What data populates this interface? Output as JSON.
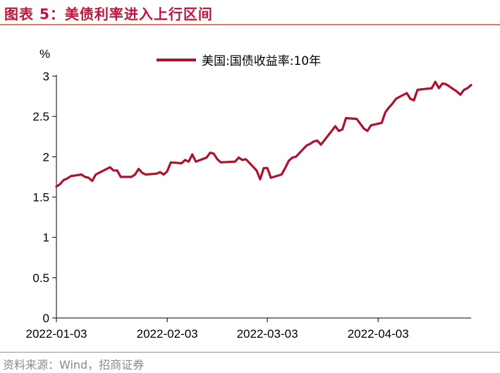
{
  "title": "图表 5：美债利率进入上行区间",
  "source": "资料来源：Wind，招商证券",
  "chart_data": {
    "type": "line",
    "unit_label": "%",
    "ylim": [
      0,
      3
    ],
    "y_ticks": [
      "3",
      "2.5",
      "2",
      "1.5",
      "1",
      "0.5",
      "0"
    ],
    "x_ticks": [
      "2022-01-03",
      "2022-02-03",
      "2022-03-03",
      "2022-04-03"
    ],
    "legend_position": "top-center",
    "grid": false,
    "series": [
      {
        "name": "美国:国债收益率:10年",
        "color": "#b0102e",
        "points": [
          [
            "2022-01-03",
            1.63
          ],
          [
            "2022-01-04",
            1.66
          ],
          [
            "2022-01-05",
            1.71
          ],
          [
            "2022-01-06",
            1.73
          ],
          [
            "2022-01-07",
            1.76
          ],
          [
            "2022-01-10",
            1.78
          ],
          [
            "2022-01-11",
            1.75
          ],
          [
            "2022-01-12",
            1.74
          ],
          [
            "2022-01-13",
            1.7
          ],
          [
            "2022-01-14",
            1.78
          ],
          [
            "2022-01-18",
            1.87
          ],
          [
            "2022-01-19",
            1.83
          ],
          [
            "2022-01-20",
            1.83
          ],
          [
            "2022-01-21",
            1.75
          ],
          [
            "2022-01-24",
            1.75
          ],
          [
            "2022-01-25",
            1.78
          ],
          [
            "2022-01-26",
            1.85
          ],
          [
            "2022-01-27",
            1.8
          ],
          [
            "2022-01-28",
            1.78
          ],
          [
            "2022-01-31",
            1.79
          ],
          [
            "2022-02-01",
            1.81
          ],
          [
            "2022-02-02",
            1.78
          ],
          [
            "2022-02-03",
            1.82
          ],
          [
            "2022-02-04",
            1.93
          ],
          [
            "2022-02-07",
            1.92
          ],
          [
            "2022-02-08",
            1.96
          ],
          [
            "2022-02-09",
            1.94
          ],
          [
            "2022-02-10",
            2.03
          ],
          [
            "2022-02-11",
            1.94
          ],
          [
            "2022-02-14",
            1.99
          ],
          [
            "2022-02-15",
            2.05
          ],
          [
            "2022-02-16",
            2.04
          ],
          [
            "2022-02-17",
            1.97
          ],
          [
            "2022-02-18",
            1.93
          ],
          [
            "2022-02-22",
            1.94
          ],
          [
            "2022-02-23",
            1.99
          ],
          [
            "2022-02-24",
            1.96
          ],
          [
            "2022-02-25",
            1.97
          ],
          [
            "2022-02-28",
            1.83
          ],
          [
            "2022-03-01",
            1.72
          ],
          [
            "2022-03-02",
            1.86
          ],
          [
            "2022-03-03",
            1.86
          ],
          [
            "2022-03-04",
            1.74
          ],
          [
            "2022-03-07",
            1.78
          ],
          [
            "2022-03-08",
            1.86
          ],
          [
            "2022-03-09",
            1.95
          ],
          [
            "2022-03-10",
            1.99
          ],
          [
            "2022-03-11",
            2.0
          ],
          [
            "2022-03-14",
            2.14
          ],
          [
            "2022-03-15",
            2.16
          ],
          [
            "2022-03-16",
            2.19
          ],
          [
            "2022-03-17",
            2.2
          ],
          [
            "2022-03-18",
            2.15
          ],
          [
            "2022-03-21",
            2.32
          ],
          [
            "2022-03-22",
            2.38
          ],
          [
            "2022-03-23",
            2.32
          ],
          [
            "2022-03-24",
            2.34
          ],
          [
            "2022-03-25",
            2.48
          ],
          [
            "2022-03-28",
            2.47
          ],
          [
            "2022-03-29",
            2.41
          ],
          [
            "2022-03-30",
            2.35
          ],
          [
            "2022-03-31",
            2.32
          ],
          [
            "2022-04-01",
            2.39
          ],
          [
            "2022-04-04",
            2.42
          ],
          [
            "2022-04-05",
            2.55
          ],
          [
            "2022-04-06",
            2.61
          ],
          [
            "2022-04-07",
            2.66
          ],
          [
            "2022-04-08",
            2.72
          ],
          [
            "2022-04-11",
            2.79
          ],
          [
            "2022-04-12",
            2.72
          ],
          [
            "2022-04-13",
            2.7
          ],
          [
            "2022-04-14",
            2.83
          ],
          [
            "2022-04-18",
            2.85
          ],
          [
            "2022-04-19",
            2.93
          ],
          [
            "2022-04-20",
            2.85
          ],
          [
            "2022-04-21",
            2.91
          ],
          [
            "2022-04-22",
            2.9
          ],
          [
            "2022-04-25",
            2.81
          ],
          [
            "2022-04-26",
            2.77
          ],
          [
            "2022-04-27",
            2.83
          ],
          [
            "2022-04-28",
            2.85
          ],
          [
            "2022-04-29",
            2.89
          ]
        ]
      }
    ]
  }
}
